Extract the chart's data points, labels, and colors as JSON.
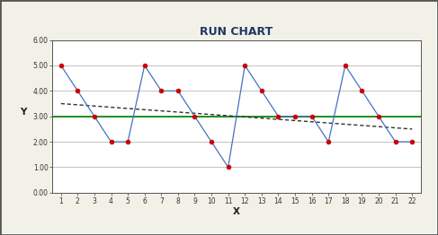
{
  "title": "RUN CHART",
  "xlabel": "X",
  "ylabel": "Y",
  "x": [
    1,
    2,
    3,
    4,
    5,
    6,
    7,
    8,
    9,
    10,
    11,
    12,
    13,
    14,
    15,
    16,
    17,
    18,
    19,
    20,
    21,
    22
  ],
  "y": [
    5,
    4,
    3,
    2,
    2,
    5,
    4,
    4,
    3,
    2,
    1,
    5,
    4,
    3,
    3,
    3,
    2,
    5,
    4,
    3,
    2,
    2
  ],
  "median": 3.0,
  "trend_start": 3.5,
  "trend_end": 2.5,
  "ylim": [
    0.0,
    6.0
  ],
  "ytick_vals": [
    0.0,
    1.0,
    2.0,
    3.0,
    4.0,
    5.0,
    6.0
  ],
  "ytick_labels": [
    "0.00",
    "1.00",
    "2.00",
    "3.00",
    "4.00",
    "5.00",
    "6.00"
  ],
  "xticks": [
    1,
    2,
    3,
    4,
    5,
    6,
    7,
    8,
    9,
    10,
    11,
    12,
    13,
    14,
    15,
    16,
    17,
    18,
    19,
    20,
    21,
    22
  ],
  "line_color": "#4472C4",
  "marker_color": "#CC0000",
  "median_color": "#008000",
  "trend_color": "#333333",
  "outer_bg": "#F2F1E8",
  "plot_bg": "#FFFFFF",
  "grid_color": "#AAAAAA",
  "border_color": "#555555",
  "title_color": "#1F3864"
}
